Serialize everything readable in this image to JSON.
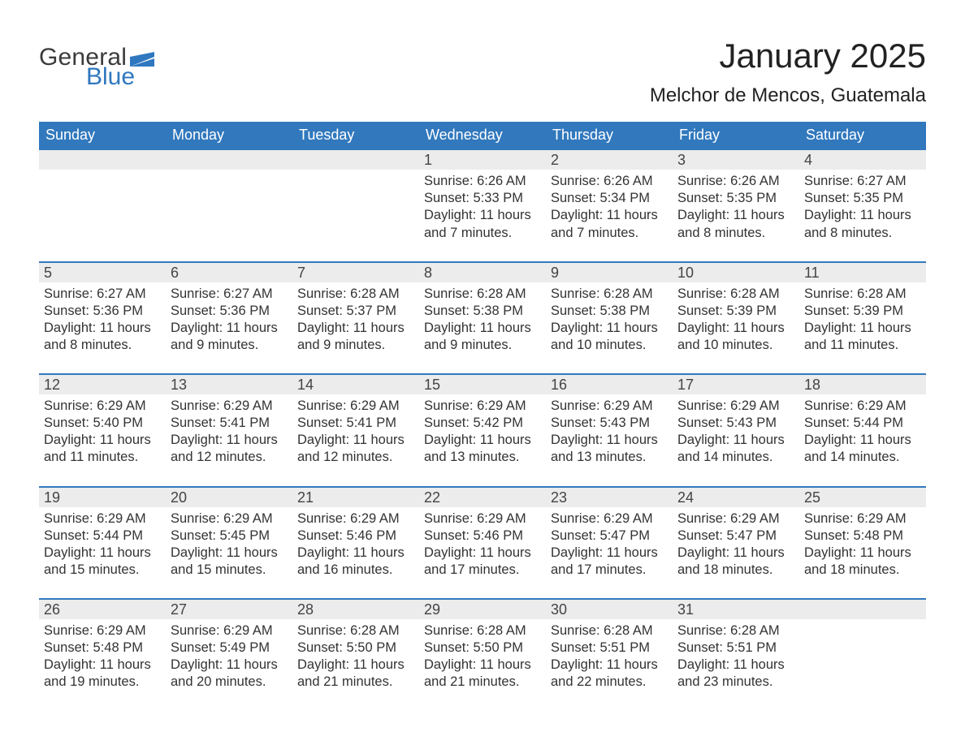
{
  "logo": {
    "word1": "General",
    "word2": "Blue",
    "flag_color": "#2f78bf",
    "word1_color": "#3b3b3b",
    "word2_color": "#2f78bf"
  },
  "title": "January 2025",
  "subtitle": "Melchor de Mencos, Guatemala",
  "colors": {
    "header_bg": "#3178bd",
    "header_text": "#ffffff",
    "row_divider": "#3178bd",
    "daynum_bg": "#ececec",
    "body_text": "#333333",
    "page_bg": "#ffffff"
  },
  "fonts": {
    "title_pt": 42,
    "subtitle_pt": 24,
    "weekday_pt": 18,
    "daynum_pt": 18,
    "body_pt": 16.5
  },
  "layout": {
    "columns": 7,
    "rows": 5,
    "first_weekday_index": 3
  },
  "weekdays": [
    "Sunday",
    "Monday",
    "Tuesday",
    "Wednesday",
    "Thursday",
    "Friday",
    "Saturday"
  ],
  "days": [
    {
      "n": 1,
      "sunrise": "6:26 AM",
      "sunset": "5:33 PM",
      "daylight": "11 hours and 7 minutes."
    },
    {
      "n": 2,
      "sunrise": "6:26 AM",
      "sunset": "5:34 PM",
      "daylight": "11 hours and 7 minutes."
    },
    {
      "n": 3,
      "sunrise": "6:26 AM",
      "sunset": "5:35 PM",
      "daylight": "11 hours and 8 minutes."
    },
    {
      "n": 4,
      "sunrise": "6:27 AM",
      "sunset": "5:35 PM",
      "daylight": "11 hours and 8 minutes."
    },
    {
      "n": 5,
      "sunrise": "6:27 AM",
      "sunset": "5:36 PM",
      "daylight": "11 hours and 8 minutes."
    },
    {
      "n": 6,
      "sunrise": "6:27 AM",
      "sunset": "5:36 PM",
      "daylight": "11 hours and 9 minutes."
    },
    {
      "n": 7,
      "sunrise": "6:28 AM",
      "sunset": "5:37 PM",
      "daylight": "11 hours and 9 minutes."
    },
    {
      "n": 8,
      "sunrise": "6:28 AM",
      "sunset": "5:38 PM",
      "daylight": "11 hours and 9 minutes."
    },
    {
      "n": 9,
      "sunrise": "6:28 AM",
      "sunset": "5:38 PM",
      "daylight": "11 hours and 10 minutes."
    },
    {
      "n": 10,
      "sunrise": "6:28 AM",
      "sunset": "5:39 PM",
      "daylight": "11 hours and 10 minutes."
    },
    {
      "n": 11,
      "sunrise": "6:28 AM",
      "sunset": "5:39 PM",
      "daylight": "11 hours and 11 minutes."
    },
    {
      "n": 12,
      "sunrise": "6:29 AM",
      "sunset": "5:40 PM",
      "daylight": "11 hours and 11 minutes."
    },
    {
      "n": 13,
      "sunrise": "6:29 AM",
      "sunset": "5:41 PM",
      "daylight": "11 hours and 12 minutes."
    },
    {
      "n": 14,
      "sunrise": "6:29 AM",
      "sunset": "5:41 PM",
      "daylight": "11 hours and 12 minutes."
    },
    {
      "n": 15,
      "sunrise": "6:29 AM",
      "sunset": "5:42 PM",
      "daylight": "11 hours and 13 minutes."
    },
    {
      "n": 16,
      "sunrise": "6:29 AM",
      "sunset": "5:43 PM",
      "daylight": "11 hours and 13 minutes."
    },
    {
      "n": 17,
      "sunrise": "6:29 AM",
      "sunset": "5:43 PM",
      "daylight": "11 hours and 14 minutes."
    },
    {
      "n": 18,
      "sunrise": "6:29 AM",
      "sunset": "5:44 PM",
      "daylight": "11 hours and 14 minutes."
    },
    {
      "n": 19,
      "sunrise": "6:29 AM",
      "sunset": "5:44 PM",
      "daylight": "11 hours and 15 minutes."
    },
    {
      "n": 20,
      "sunrise": "6:29 AM",
      "sunset": "5:45 PM",
      "daylight": "11 hours and 15 minutes."
    },
    {
      "n": 21,
      "sunrise": "6:29 AM",
      "sunset": "5:46 PM",
      "daylight": "11 hours and 16 minutes."
    },
    {
      "n": 22,
      "sunrise": "6:29 AM",
      "sunset": "5:46 PM",
      "daylight": "11 hours and 17 minutes."
    },
    {
      "n": 23,
      "sunrise": "6:29 AM",
      "sunset": "5:47 PM",
      "daylight": "11 hours and 17 minutes."
    },
    {
      "n": 24,
      "sunrise": "6:29 AM",
      "sunset": "5:47 PM",
      "daylight": "11 hours and 18 minutes."
    },
    {
      "n": 25,
      "sunrise": "6:29 AM",
      "sunset": "5:48 PM",
      "daylight": "11 hours and 18 minutes."
    },
    {
      "n": 26,
      "sunrise": "6:29 AM",
      "sunset": "5:48 PM",
      "daylight": "11 hours and 19 minutes."
    },
    {
      "n": 27,
      "sunrise": "6:29 AM",
      "sunset": "5:49 PM",
      "daylight": "11 hours and 20 minutes."
    },
    {
      "n": 28,
      "sunrise": "6:28 AM",
      "sunset": "5:50 PM",
      "daylight": "11 hours and 21 minutes."
    },
    {
      "n": 29,
      "sunrise": "6:28 AM",
      "sunset": "5:50 PM",
      "daylight": "11 hours and 21 minutes."
    },
    {
      "n": 30,
      "sunrise": "6:28 AM",
      "sunset": "5:51 PM",
      "daylight": "11 hours and 22 minutes."
    },
    {
      "n": 31,
      "sunrise": "6:28 AM",
      "sunset": "5:51 PM",
      "daylight": "11 hours and 23 minutes."
    }
  ],
  "labels": {
    "sunrise": "Sunrise",
    "sunset": "Sunset",
    "daylight": "Daylight"
  }
}
